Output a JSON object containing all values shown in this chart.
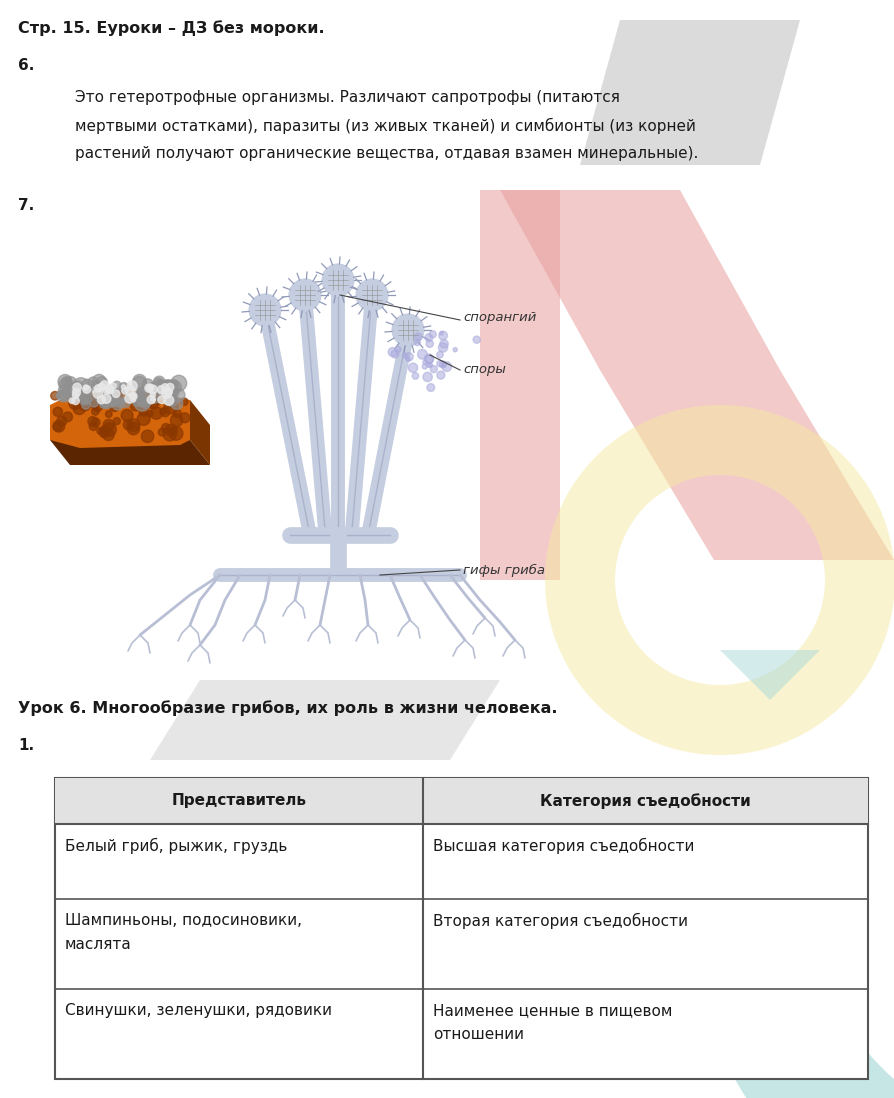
{
  "title": "Стр. 15. Еуроки – ДЗ без мороки.",
  "section6_label": "6.",
  "section6_text_line1": "Это гетеротрофные организмы. Различают сапротрофы (питаются",
  "section6_text_line2": "мертвыми остатками), паразиты (из живых тканей) и симбионты (из корней",
  "section6_text_line3": "растений получают органические вещества, отдавая взамен минеральные).",
  "section7_label": "7.",
  "label_sporangiy": "спорангий",
  "label_spory": "споры",
  "label_giphy": "гифы гриба",
  "lesson_title": "Урок 6. Многообразие грибов, их роль в жизни человека.",
  "section1_label": "1.",
  "table_header": [
    "Представитель",
    "Категория съедобности"
  ],
  "table_row1_left": "Белый гриб, рыжик, груздь",
  "table_row1_right": "Высшая категория съедобности",
  "table_row2_left_1": "Шампиньоны, подосиновики,",
  "table_row2_left_2": "маслята",
  "table_row2_right": "Вторая категория съедобности",
  "table_row3_left": "Свинушки, зеленушки, рядовики",
  "table_row3_right_1": "Наименее ценные в пищевом",
  "table_row3_right_2": "отношении",
  "bg_color": "#ffffff",
  "text_color": "#1a1a1a",
  "table_border_color": "#555555",
  "font_size_title": 11.5,
  "font_size_text": 11,
  "font_size_label": 9.5,
  "font_size_table_header": 11,
  "font_size_table_body": 11
}
